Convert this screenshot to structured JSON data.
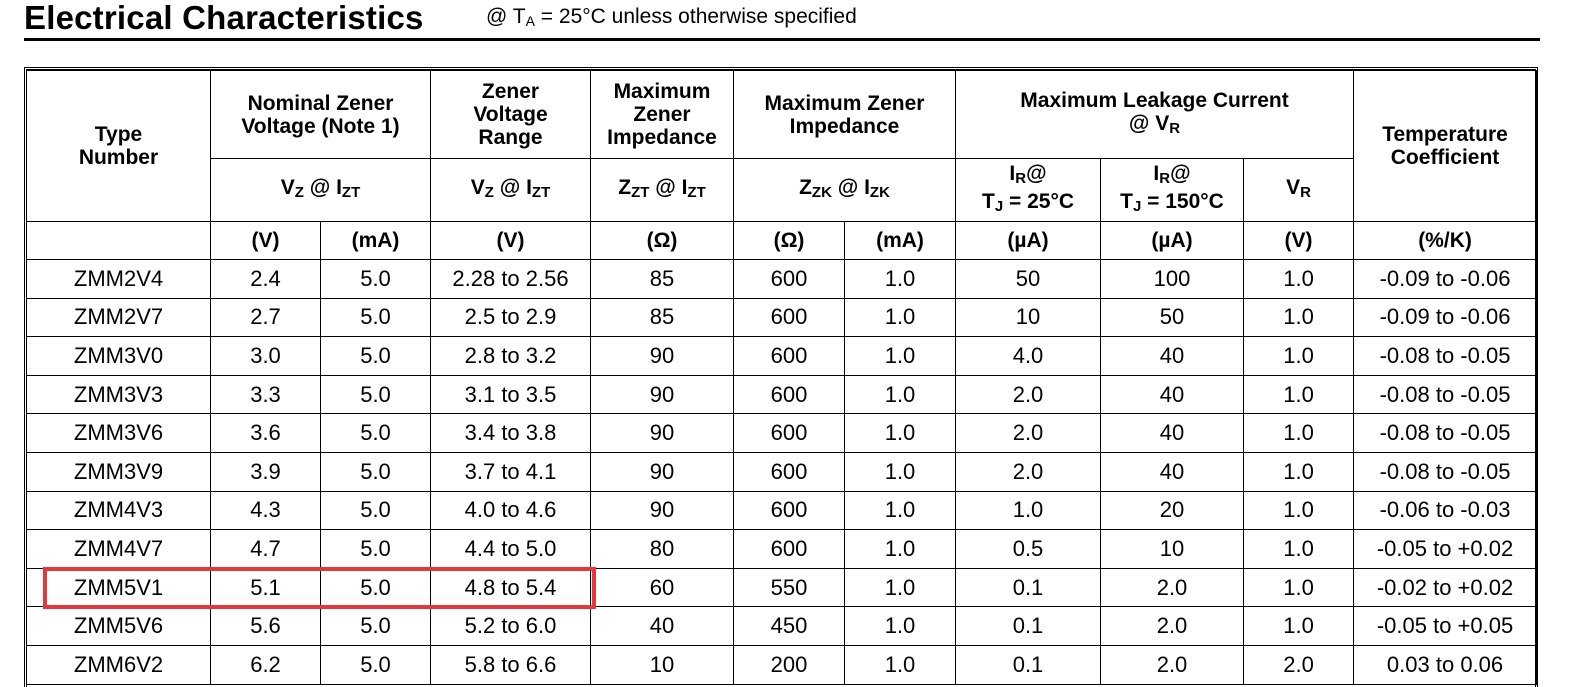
{
  "header": {
    "title": "Electrical Characteristics",
    "subtitle_prefix": "@ T",
    "subtitle_sub": "A",
    "subtitle_suffix": " = 25°C unless otherwise specified"
  },
  "columns": {
    "type_number": "Type Number",
    "nominal_voltage": "Nominal Zener Voltage (Note 1)",
    "voltage_range": "Zener Voltage Range",
    "max_impedance_zt": "Maximum Zener Impedance",
    "max_impedance_zk": "Maximum Zener Impedance",
    "leakage_prefix": "Maximum Leakage Current @ V",
    "leakage_sub": "R",
    "temp_coeff": "Temperature Coefficient"
  },
  "symbols": {
    "vz_izt": {
      "a": "V",
      "as": "Z",
      "mid": " @ I",
      "bs": "ZT"
    },
    "zzt_izt": {
      "a": "Z",
      "as": "ZT",
      "mid": " @ I",
      "bs": "ZT"
    },
    "zzk_izk": {
      "a": "Z",
      "as": "ZK",
      "mid": " @ I",
      "bs": "ZK"
    },
    "ir_25": {
      "a": "I",
      "as": "R",
      "mid": "@",
      "line2": "T",
      "line2s": "J",
      "line2r": " = 25°C"
    },
    "ir_150": {
      "a": "I",
      "as": "R",
      "mid": "@",
      "line2": "T",
      "line2s": "J",
      "line2r": " = 150°C"
    },
    "vr": {
      "a": "V",
      "as": "R"
    }
  },
  "units": [
    "(V)",
    "(mA)",
    "(V)",
    "(Ω)",
    "(Ω)",
    "(mA)",
    "(µA)",
    "(µA)",
    "(V)",
    "(%/K)"
  ],
  "rows": [
    [
      "ZMM2V4",
      "2.4",
      "5.0",
      "2.28 to 2.56",
      "85",
      "600",
      "1.0",
      "50",
      "100",
      "1.0",
      "-0.09 to -0.06"
    ],
    [
      "ZMM2V7",
      "2.7",
      "5.0",
      "2.5 to 2.9",
      "85",
      "600",
      "1.0",
      "10",
      "50",
      "1.0",
      "-0.09 to -0.06"
    ],
    [
      "ZMM3V0",
      "3.0",
      "5.0",
      "2.8 to 3.2",
      "90",
      "600",
      "1.0",
      "4.0",
      "40",
      "1.0",
      "-0.08 to -0.05"
    ],
    [
      "ZMM3V3",
      "3.3",
      "5.0",
      "3.1 to 3.5",
      "90",
      "600",
      "1.0",
      "2.0",
      "40",
      "1.0",
      "-0.08 to -0.05"
    ],
    [
      "ZMM3V6",
      "3.6",
      "5.0",
      "3.4 to 3.8",
      "90",
      "600",
      "1.0",
      "2.0",
      "40",
      "1.0",
      "-0.08 to -0.05"
    ],
    [
      "ZMM3V9",
      "3.9",
      "5.0",
      "3.7 to 4.1",
      "90",
      "600",
      "1.0",
      "2.0",
      "40",
      "1.0",
      "-0.08 to -0.05"
    ],
    [
      "ZMM4V3",
      "4.3",
      "5.0",
      "4.0 to 4.6",
      "90",
      "600",
      "1.0",
      "1.0",
      "20",
      "1.0",
      "-0.06 to -0.03"
    ],
    [
      "ZMM4V7",
      "4.7",
      "5.0",
      "4.4 to 5.0",
      "80",
      "600",
      "1.0",
      "0.5",
      "10",
      "1.0",
      "-0.05 to +0.02"
    ],
    [
      "ZMM5V1",
      "5.1",
      "5.0",
      "4.8 to 5.4",
      "60",
      "550",
      "1.0",
      "0.1",
      "2.0",
      "1.0",
      "-0.02 to +0.02"
    ],
    [
      "ZMM5V6",
      "5.6",
      "5.0",
      "5.2 to 6.0",
      "40",
      "450",
      "1.0",
      "0.1",
      "2.0",
      "1.0",
      "-0.05 to +0.05"
    ],
    [
      "ZMM6V2",
      "6.2",
      "5.0",
      "5.8 to 6.6",
      "10",
      "200",
      "1.0",
      "0.1",
      "2.0",
      "2.0",
      "0.03 to 0.06"
    ]
  ],
  "highlight_color": "#e5383c"
}
